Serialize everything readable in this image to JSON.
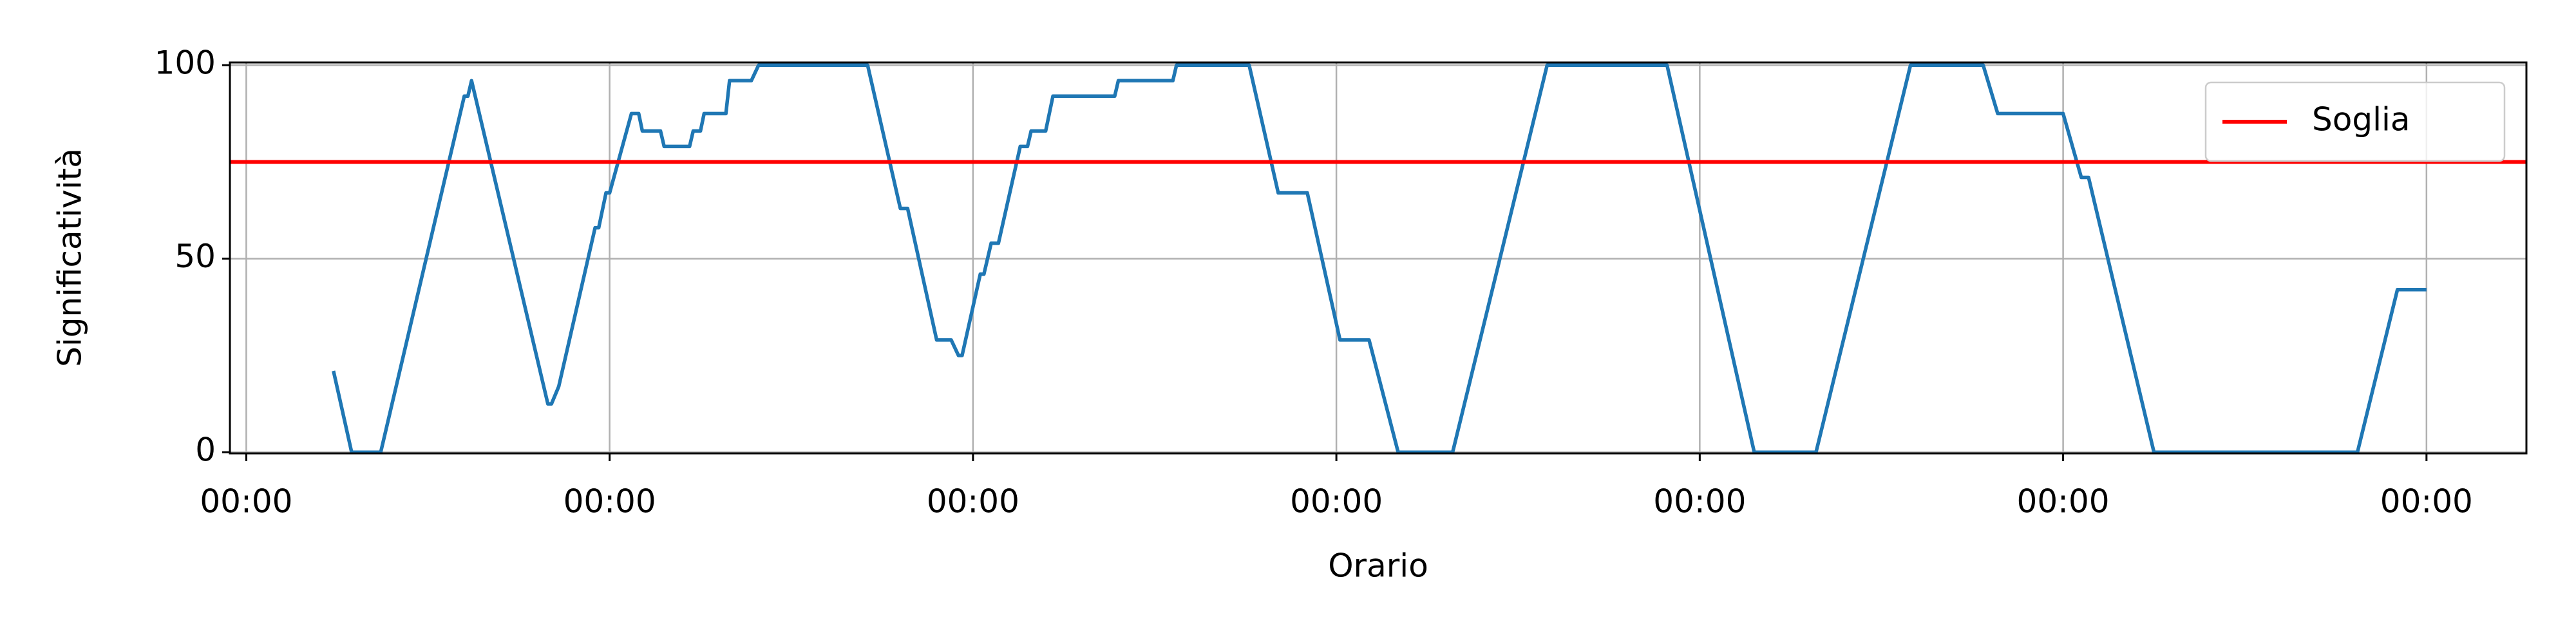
{
  "chart_data": {
    "type": "line",
    "xlabel": "Orario",
    "ylabel": "Significatività",
    "x": [
      0.24,
      0.29,
      0.37,
      0.6,
      0.61,
      0.62,
      0.83,
      0.84,
      0.86,
      0.86,
      0.96,
      0.97,
      0.99,
      1.0,
      1.06,
      1.08,
      1.09,
      1.14,
      1.15,
      1.22,
      1.23,
      1.25,
      1.26,
      1.32,
      1.33,
      1.39,
      1.41,
      1.71,
      1.8,
      1.82,
      1.9,
      1.94,
      1.96,
      1.97,
      2.02,
      2.03,
      2.05,
      2.07,
      2.13,
      2.15,
      2.16,
      2.2,
      2.22,
      2.39,
      2.4,
      2.55,
      2.56,
      2.76,
      2.84,
      2.92,
      3.01,
      3.09,
      3.17,
      3.32,
      3.58,
      3.91,
      4.15,
      4.32,
      4.58,
      4.78,
      4.82,
      5.0,
      5.05,
      5.07,
      5.25,
      5.81,
      5.92,
      6.0
    ],
    "values": [
      21,
      0,
      0,
      92,
      92,
      96,
      12.5,
      12.5,
      17,
      17,
      58,
      58,
      67,
      67,
      87.5,
      87.5,
      83,
      83,
      79,
      79,
      83,
      83,
      87.5,
      87.5,
      96,
      96,
      100,
      100,
      63,
      63,
      29,
      29,
      25,
      25,
      46,
      46,
      54,
      54,
      79,
      79,
      83,
      83,
      92,
      92,
      96,
      96,
      100,
      100,
      67,
      67,
      29,
      29,
      0,
      0,
      100,
      100,
      0,
      0,
      100,
      100,
      87.5,
      87.5,
      71,
      71,
      0,
      0,
      42,
      42
    ],
    "color": "#1f77b4",
    "threshold": {
      "name": "Soglia",
      "value": 75,
      "color": "#ff0000"
    },
    "xlim": [
      -0.045,
      6.275
    ],
    "ylim": [
      -0.3,
      100.7
    ],
    "xticks": [
      {
        "value": 0,
        "label": "00:00"
      },
      {
        "value": 1,
        "label": "00:00"
      },
      {
        "value": 2,
        "label": "00:00"
      },
      {
        "value": 3,
        "label": "00:00"
      },
      {
        "value": 4,
        "label": "00:00"
      },
      {
        "value": 5,
        "label": "00:00"
      },
      {
        "value": 6,
        "label": "00:00"
      }
    ],
    "yticks": [
      0,
      50,
      100
    ],
    "grid": true,
    "legend": "upper right"
  }
}
